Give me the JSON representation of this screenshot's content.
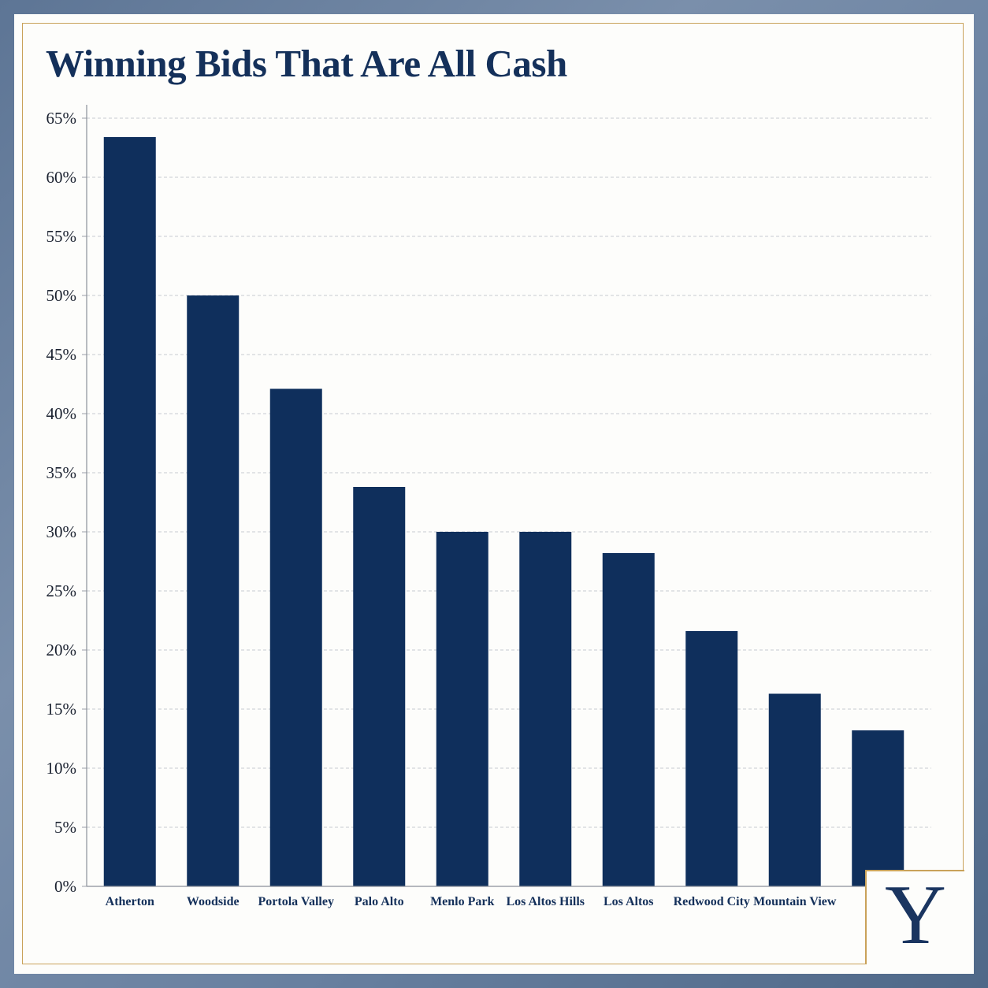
{
  "chart_data": {
    "type": "bar",
    "title": "Winning Bids That Are All Cash",
    "xlabel": "",
    "ylabel": "",
    "categories": [
      "Atherton",
      "Woodside",
      "Portola Valley",
      "Palo Alto",
      "Menlo Park",
      "Los Altos Hills",
      "Los Altos",
      "Redwood City",
      "Mountain View",
      ""
    ],
    "values": [
      63.4,
      50.0,
      42.1,
      33.8,
      30.0,
      30.0,
      28.2,
      21.6,
      16.3,
      13.2
    ],
    "ylim": [
      0,
      65
    ],
    "yticks": [
      0,
      5,
      10,
      15,
      20,
      25,
      30,
      35,
      40,
      45,
      50,
      55,
      60,
      65
    ],
    "ytick_labels": [
      "0%",
      "5%",
      "10%",
      "15%",
      "20%",
      "25%",
      "30%",
      "35%",
      "40%",
      "45%",
      "50%",
      "55%",
      "60%",
      "65%"
    ],
    "grid": true,
    "legend": "none",
    "colors": {
      "bar": "#0f2f5c",
      "title": "#14305a",
      "grid": "#c8ccd2",
      "accent": "#c9a25a"
    }
  },
  "logo": {
    "text": "Y"
  }
}
